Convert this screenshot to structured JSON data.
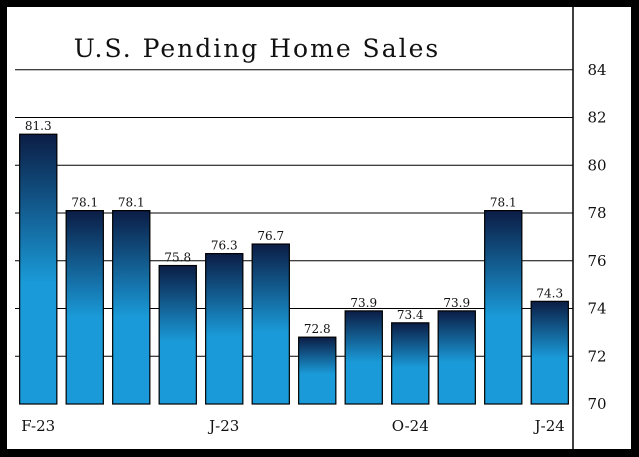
{
  "chart_data": {
    "type": "bar",
    "title": "U.S. Pending Home Sales",
    "xlabel": "",
    "ylabel": "",
    "categories": [
      "F-23",
      "",
      "",
      "",
      "J-23",
      "",
      "",
      "",
      "O-24",
      "",
      "",
      "J-24"
    ],
    "series": [
      {
        "values": [
          81.3,
          78.1,
          78.1,
          75.8,
          76.3,
          76.7,
          72.8,
          73.9,
          73.4,
          73.9,
          78.1,
          74.3
        ]
      }
    ],
    "data_labels": [
      "81.3",
      "78.1",
      "78.1",
      "75.8",
      "76.3",
      "76.7",
      "72.8",
      "73.9",
      "73.4",
      "73.9",
      "78.1",
      "74.3"
    ],
    "ylim": [
      70,
      86
    ],
    "yticks": [
      70,
      72,
      74,
      76,
      78,
      80,
      82,
      84
    ],
    "y_axis_side": "right",
    "grid": true,
    "legend": "none",
    "colors": {
      "bar_top": "#0b1d45",
      "bar_bottom": "#1a9ad8",
      "frame": "#000000",
      "background": "#ffffff"
    }
  }
}
